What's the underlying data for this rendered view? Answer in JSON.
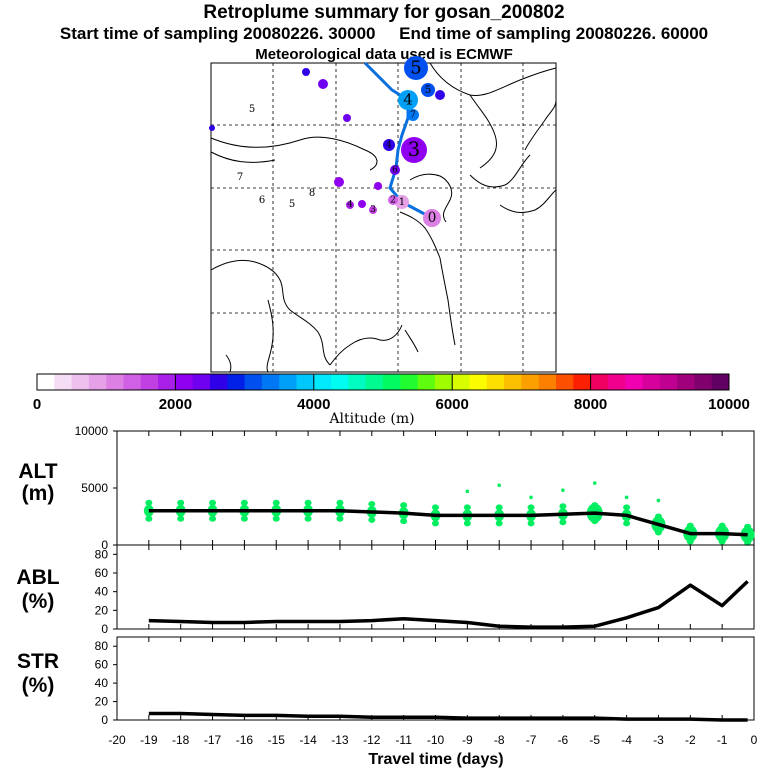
{
  "header": {
    "title": "Retroplume summary for gosan_200802",
    "start_label": "Start time of sampling 20080226. 30000",
    "end_label": "End time of sampling 20080226. 60000",
    "met_label": "Meteorological data used is ECMWF"
  },
  "colorbar": {
    "ticks": [
      "0",
      "2000",
      "4000",
      "6000",
      "8000",
      "10000"
    ],
    "xlabel": "Altitude (m)",
    "colors": [
      "#ffffff",
      "#f6ddf6",
      "#eec0ee",
      "#e6a0e8",
      "#dd80e4",
      "#d060e4",
      "#c040e4",
      "#a820e8",
      "#9000f0",
      "#7000f0",
      "#3000e8",
      "#0020e8",
      "#0050f0",
      "#0078f4",
      "#00a0f8",
      "#00c8fc",
      "#00e8fc",
      "#00fcf0",
      "#00fcc0",
      "#00fc90",
      "#00fc60",
      "#20fc30",
      "#60fc10",
      "#a0fc00",
      "#d8fc00",
      "#fcfc00",
      "#fce000",
      "#fcc000",
      "#fca000",
      "#fc8000",
      "#fc5000",
      "#fc2000",
      "#f00060",
      "#f0008c",
      "#f000b0",
      "#d8009c",
      "#c00090",
      "#a0007c",
      "#80006c",
      "#600060"
    ]
  },
  "map": {
    "markers": [
      {
        "label": "0",
        "alt": 1200
      },
      {
        "label": "1",
        "alt": 950
      },
      {
        "label": "2",
        "alt": 1300
      },
      {
        "label": "3",
        "alt": 2100
      },
      {
        "label": "4",
        "alt": 3500
      },
      {
        "label": "5",
        "alt": 3100
      },
      {
        "label": "5",
        "alt": 3000
      },
      {
        "label": "4",
        "alt": 2700
      },
      {
        "label": "6",
        "alt": 2300
      },
      {
        "label": "7",
        "alt": 3400
      },
      {
        "label": "3",
        "alt": 1500
      },
      {
        "label": "4",
        "alt": 1800
      }
    ]
  },
  "panels": {
    "alt": {
      "label_top": "ALT",
      "label_bottom": "(m)",
      "ticks": [
        "10000",
        "5000",
        "0"
      ]
    },
    "abl": {
      "label_top": "ABL",
      "label_bottom": "(%)",
      "ticks": [
        "80",
        "60",
        "40",
        "20",
        "0"
      ]
    },
    "str": {
      "label_top": "STR",
      "label_bottom": "(%)",
      "ticks": [
        "80",
        "60",
        "40",
        "20",
        "0"
      ]
    }
  },
  "xaxis": {
    "ticks": [
      "-20",
      "-19",
      "-18",
      "-17",
      "-16",
      "-15",
      "-14",
      "-13",
      "-12",
      "-11",
      "-10",
      "-9",
      "-8",
      "-7",
      "-6",
      "-5",
      "-4",
      "-3",
      "-2",
      "-1",
      "0"
    ],
    "label": "Travel time (days)"
  },
  "chart_data": [
    {
      "type": "line",
      "title": "ALT",
      "ylabel": "Altitude (m)",
      "xlabel": "Travel time (days)",
      "xlim": [
        -20,
        0
      ],
      "ylim": [
        0,
        10000
      ],
      "x": [
        -19,
        -18,
        -17,
        -16,
        -15,
        -14,
        -13,
        -12,
        -11,
        -10,
        -9,
        -8,
        -7,
        -6,
        -5,
        -4,
        -3,
        -2,
        -1,
        -0.2
      ],
      "y": [
        3000,
        3000,
        3000,
        3000,
        3000,
        3000,
        3000,
        2900,
        2800,
        2600,
        2600,
        2600,
        2600,
        2700,
        2800,
        2600,
        1800,
        1000,
        1000,
        900
      ],
      "scatter_color": "#00ee60"
    },
    {
      "type": "line",
      "title": "ABL",
      "ylabel": "ABL (%)",
      "xlabel": "Travel time (days)",
      "xlim": [
        -20,
        0
      ],
      "ylim": [
        0,
        90
      ],
      "x": [
        -19,
        -18,
        -17,
        -16,
        -15,
        -14,
        -13,
        -12,
        -11,
        -10,
        -9,
        -8,
        -7,
        -6,
        -5,
        -4,
        -3,
        -2,
        -1,
        -0.2
      ],
      "y": [
        9,
        8,
        7,
        7,
        8,
        8,
        8,
        9,
        11,
        9,
        7,
        3,
        2,
        2,
        3,
        12,
        23,
        47,
        25,
        51
      ]
    },
    {
      "type": "line",
      "title": "STR",
      "ylabel": "STR (%)",
      "xlabel": "Travel time (days)",
      "xlim": [
        -20,
        0
      ],
      "ylim": [
        0,
        90
      ],
      "x": [
        -19,
        -18,
        -17,
        -16,
        -15,
        -14,
        -13,
        -12,
        -11,
        -10,
        -9,
        -8,
        -7,
        -6,
        -5,
        -4,
        -3,
        -2,
        -1,
        -0.2
      ],
      "y": [
        7,
        7,
        6,
        5,
        5,
        4,
        4,
        3,
        3,
        3,
        2,
        2,
        2,
        2,
        2,
        1,
        1,
        1,
        0,
        0
      ]
    }
  ]
}
